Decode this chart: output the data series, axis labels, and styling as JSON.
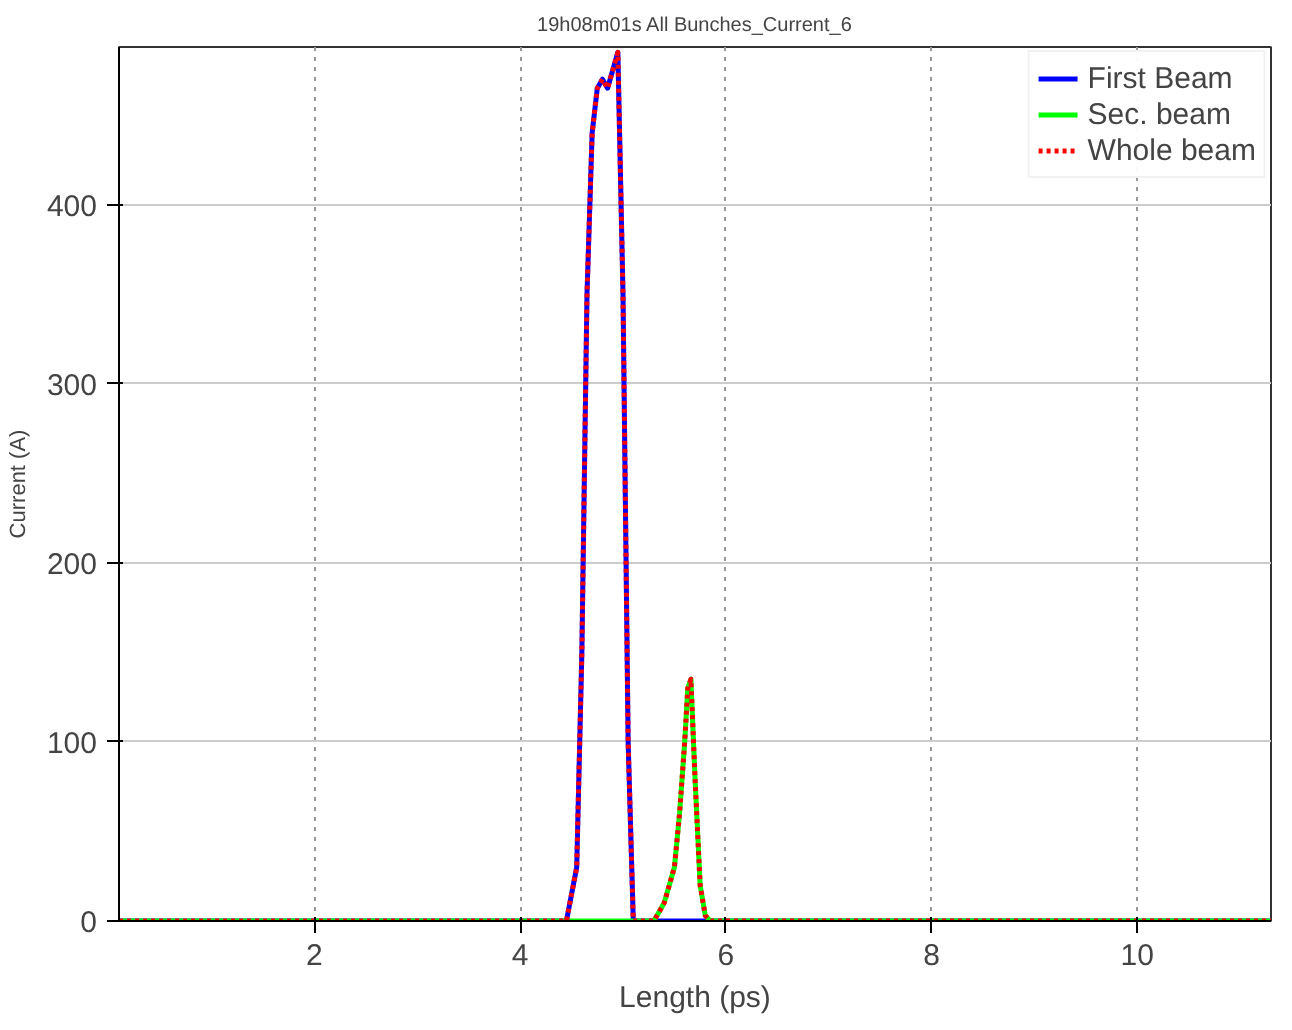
{
  "chart_data": {
    "type": "line",
    "title": "19h08m01s All Bunches_Current_6",
    "xlabel": "Length (ps)",
    "ylabel": "Current (A)",
    "xlim": [
      0.1,
      11.3
    ],
    "ylim": [
      0,
      488
    ],
    "xticks": [
      2,
      4,
      6,
      8,
      10
    ],
    "yticks": [
      0,
      100,
      200,
      300,
      400
    ],
    "grid": true,
    "legend": "top right",
    "series": [
      {
        "name": "First Beam",
        "color": "#0000ff",
        "line_style": "solid",
        "x": [
          0.1,
          4.45,
          4.55,
          4.6,
          4.65,
          4.7,
          4.75,
          4.8,
          4.85,
          4.9,
          4.95,
          5.0,
          5.05,
          5.1,
          11.3
        ],
        "values": [
          0,
          0,
          30,
          150,
          350,
          440,
          465,
          470,
          465,
          475,
          485,
          350,
          100,
          0,
          0
        ]
      },
      {
        "name": "Sec. beam",
        "color": "#00ff00",
        "line_style": "solid",
        "x": [
          0.1,
          5.3,
          5.4,
          5.5,
          5.55,
          5.6,
          5.63,
          5.66,
          5.7,
          5.75,
          5.8,
          5.85,
          11.3
        ],
        "values": [
          0,
          0,
          10,
          30,
          60,
          100,
          130,
          135,
          80,
          20,
          3,
          0,
          0
        ]
      },
      {
        "name": "Whole beam",
        "color": "#ff0000",
        "line_style": "dotted",
        "x": [
          0.1,
          4.45,
          4.55,
          4.6,
          4.65,
          4.7,
          4.75,
          4.8,
          4.85,
          4.9,
          4.95,
          5.0,
          5.05,
          5.1,
          5.3,
          5.4,
          5.5,
          5.55,
          5.6,
          5.63,
          5.66,
          5.7,
          5.75,
          5.8,
          5.85,
          11.3
        ],
        "values": [
          0,
          0,
          30,
          150,
          350,
          440,
          465,
          470,
          465,
          475,
          485,
          350,
          100,
          0,
          0,
          10,
          30,
          60,
          100,
          130,
          135,
          80,
          20,
          3,
          0,
          0
        ]
      }
    ]
  }
}
